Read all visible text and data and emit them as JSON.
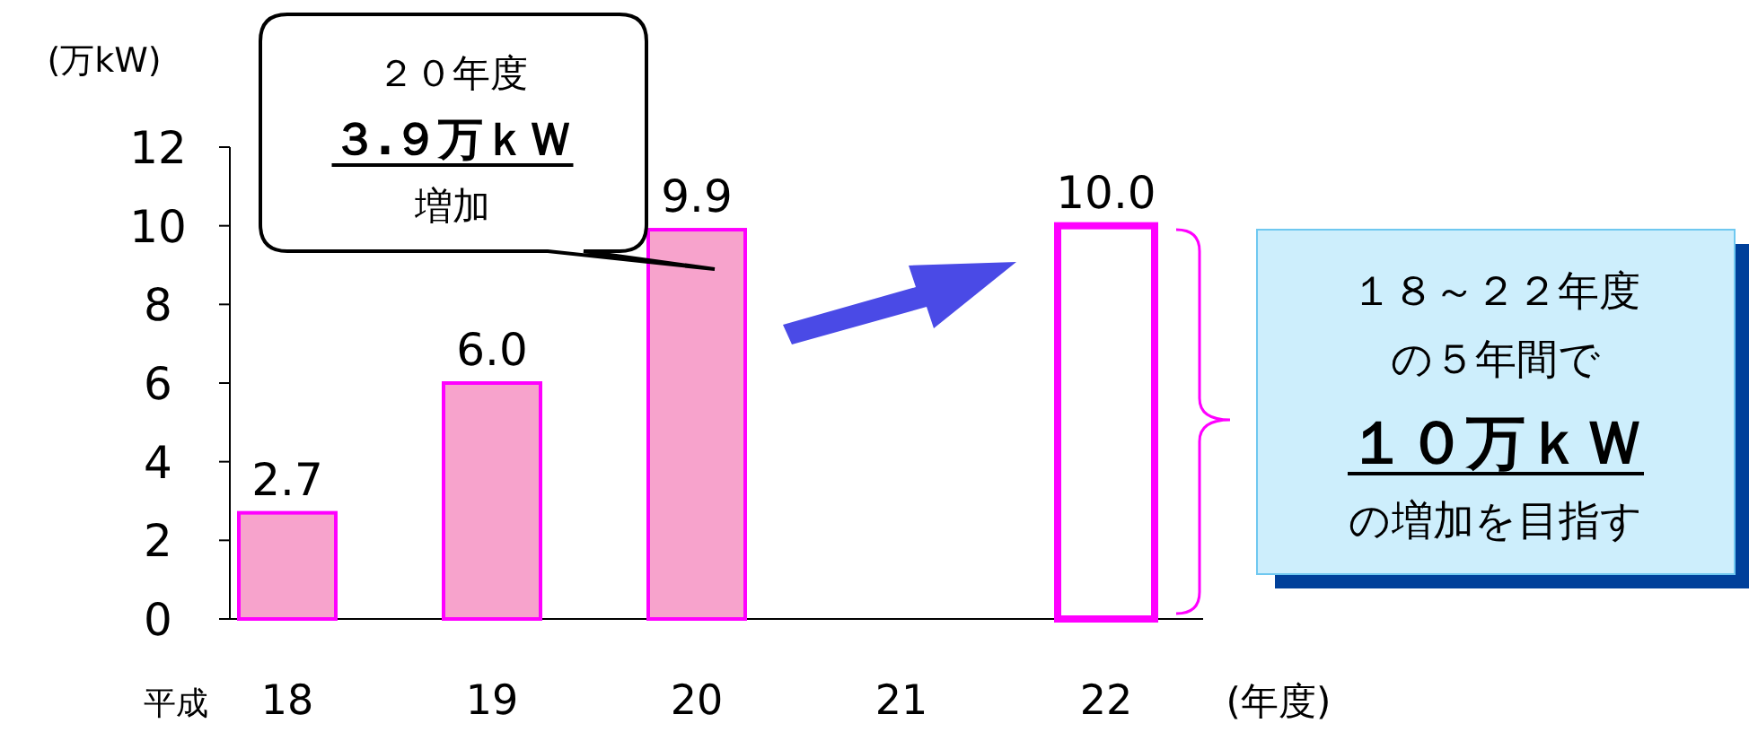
{
  "chart_data": {
    "type": "bar",
    "ylabel": "(万kW)",
    "xlabel": "(年度)",
    "categories": [
      "18",
      "19",
      "20",
      "21",
      "22"
    ],
    "values": [
      2.7,
      6.0,
      9.9,
      null,
      10.0
    ],
    "colors": [
      "#f7a3cc",
      "#f7a3cc",
      "#f7a3cc",
      null,
      "#ffffff"
    ],
    "value_labels": [
      "2.7",
      "6.0",
      "9.9",
      null,
      "10.0"
    ],
    "ylim": [
      0,
      12
    ],
    "yticks": [
      0,
      2,
      4,
      6,
      8,
      10,
      12
    ],
    "annotations": [
      "２０年度",
      "３.９万ｋＷ",
      "増加",
      "１８～２２年度",
      "の５年間で",
      "１０万ｋＷ",
      "の増加を目指す",
      "平成"
    ]
  }
}
